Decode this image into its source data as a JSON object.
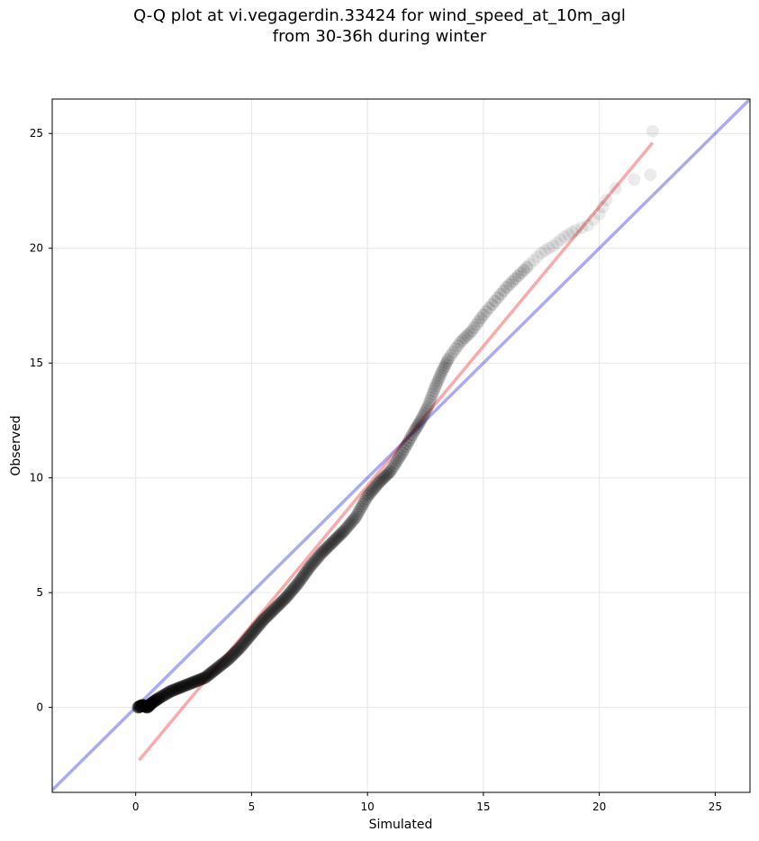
{
  "chart_data": {
    "type": "scatter",
    "title_lines": [
      "Q-Q plot at vi.vegagerdin.33424 for wind_speed_at_10m_agl",
      "from 30-36h during winter"
    ],
    "xlabel": "Simulated",
    "ylabel": "Observed",
    "xlim": [
      -3.6,
      26.5
    ],
    "ylim": [
      -3.7,
      26.5
    ],
    "xticks": [
      0,
      5,
      10,
      15,
      20,
      25
    ],
    "yticks": [
      0,
      5,
      10,
      15,
      20,
      25
    ],
    "grid": true,
    "colors": {
      "points": "#000000",
      "identity_line": "#0000dd",
      "fit_line": "#ee2222"
    },
    "identity_line": {
      "x": [
        -3.6,
        26.5
      ],
      "y": [
        -3.6,
        26.5
      ]
    },
    "fit_line": {
      "x": [
        0.15,
        22.3
      ],
      "y": [
        -2.3,
        24.6
      ]
    },
    "quantiles": {
      "x": [
        0.1,
        0.3,
        0.5,
        0.7,
        1.0,
        1.5,
        2.0,
        2.5,
        3.0,
        3.5,
        4.0,
        4.5,
        5.0,
        5.5,
        6.0,
        6.5,
        7.0,
        7.5,
        8.0,
        8.5,
        9.0,
        9.5,
        10.0,
        10.5,
        11.0,
        11.5,
        12.0,
        12.3,
        12.6,
        12.9,
        13.2,
        13.5,
        14.0,
        14.5,
        15.0,
        15.5,
        16.0,
        16.5,
        17.0,
        17.5,
        18.0,
        18.5,
        19.0,
        19.5,
        20.0,
        20.3,
        20.7,
        21.5,
        22.2,
        22.3
      ],
      "y": [
        0.0,
        0.1,
        0.0,
        0.2,
        0.4,
        0.7,
        0.9,
        1.1,
        1.3,
        1.7,
        2.1,
        2.6,
        3.2,
        3.8,
        4.3,
        4.8,
        5.4,
        6.1,
        6.7,
        7.2,
        7.7,
        8.3,
        9.2,
        9.8,
        10.3,
        11.1,
        12.0,
        12.5,
        13.1,
        13.9,
        14.6,
        15.2,
        15.9,
        16.4,
        17.1,
        17.7,
        18.3,
        18.8,
        19.3,
        19.8,
        20.1,
        20.5,
        20.8,
        21.0,
        21.5,
        22.1,
        22.6,
        23.0,
        23.2,
        25.1
      ]
    }
  }
}
